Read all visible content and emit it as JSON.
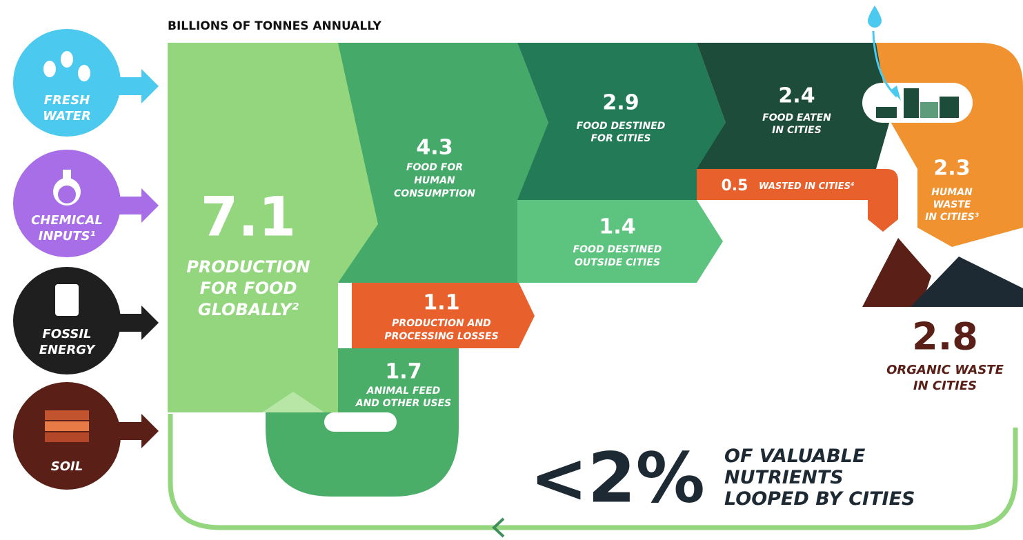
{
  "header": {
    "title": "BILLIONS OF TONNES ANNUALLY"
  },
  "inputs": [
    {
      "label": [
        "FRESH",
        "WATER"
      ]
    },
    {
      "label": [
        "CHEMICAL",
        "INPUTS¹"
      ]
    },
    {
      "label": [
        "FOSSIL",
        "ENERGY"
      ]
    },
    {
      "label": [
        "SOIL"
      ]
    }
  ],
  "flows": [
    {
      "value": 7.1,
      "label": [
        "PRODUCTION",
        "FOR FOOD",
        "GLOBALLY²"
      ]
    },
    {
      "value": 4.3,
      "label": [
        "FOOD FOR",
        "HUMAN",
        "CONSUMPTION"
      ]
    },
    {
      "value": 2.9,
      "label": [
        "FOOD DESTINED",
        "FOR CITIES"
      ]
    },
    {
      "value": 2.4,
      "label": [
        "FOOD EATEN",
        "IN CITIES"
      ]
    },
    {
      "value": 2.3,
      "label": [
        "HUMAN",
        "WASTE",
        "IN CITIES³"
      ]
    },
    {
      "value": 1.4,
      "label": [
        "FOOD DESTINED",
        "OUTSIDE CITIES"
      ]
    },
    {
      "value": 1.1,
      "label": [
        "PRODUCTION AND",
        "PROCESSING LOSSES"
      ]
    },
    {
      "value": 1.7,
      "label": [
        "ANIMAL FEED",
        "AND OTHER USES"
      ]
    },
    {
      "value": 0.5,
      "label": [
        "WASTED IN CITIES⁴"
      ]
    },
    {
      "value": 2.8,
      "label": [
        "ORGANIC WASTE",
        "IN CITIES"
      ]
    }
  ],
  "callout": {
    "value": "<2%",
    "label": [
      "OF VALUABLE",
      "NUTRIENTS",
      "LOOPED BY CITIES"
    ]
  }
}
